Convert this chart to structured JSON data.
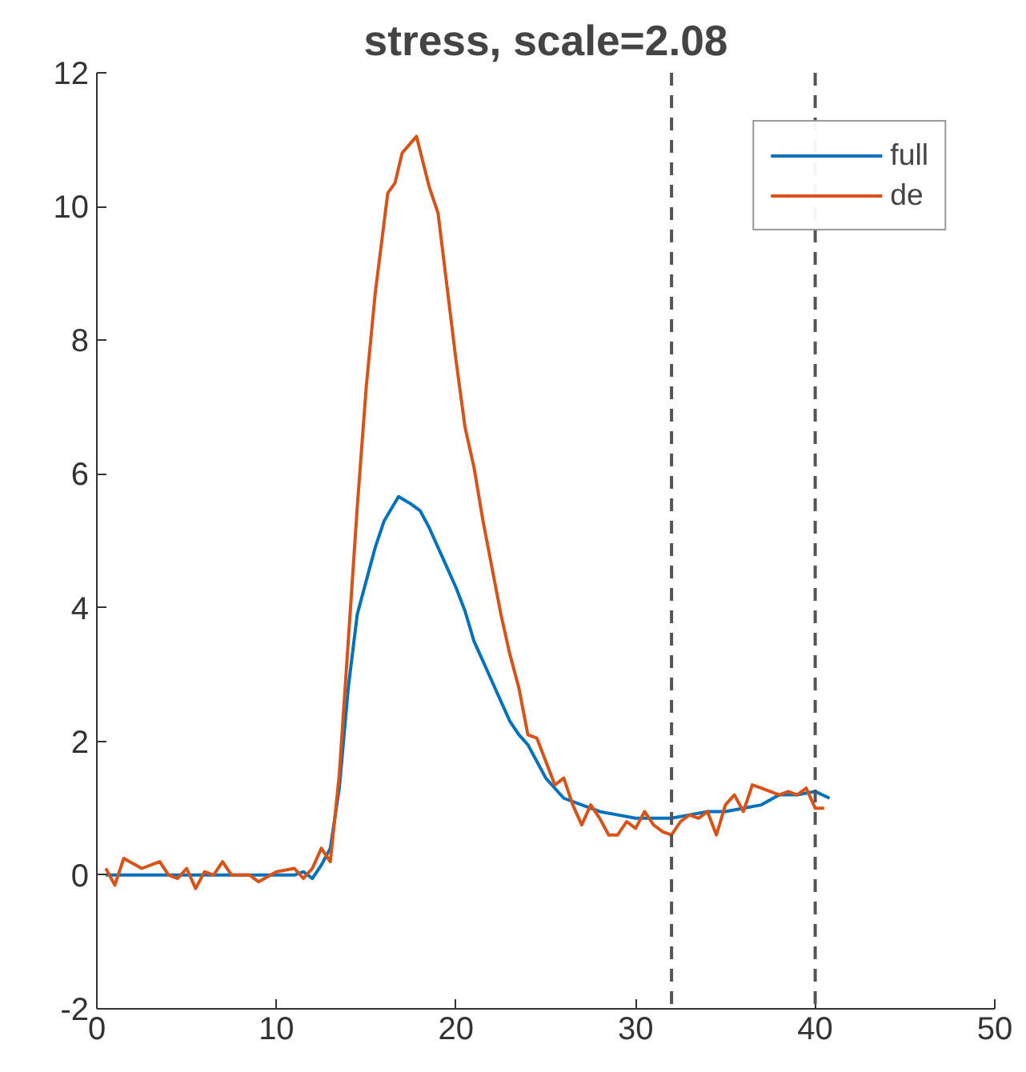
{
  "chart_data": {
    "type": "line",
    "title": "stress, scale=2.08",
    "xlim": [
      0,
      50
    ],
    "xticks": [
      0,
      10,
      20,
      30,
      40,
      50
    ],
    "ylim": [
      -2,
      12
    ],
    "yticks": [
      -2,
      0,
      2,
      4,
      6,
      8,
      10,
      12
    ],
    "grid": false,
    "legend": "top right",
    "line_style": "solid",
    "marker": "none",
    "ref_lines": [
      {
        "axis": "x",
        "value": 32,
        "label": null,
        "color": "#555555",
        "line_style": "dashed"
      },
      {
        "axis": "x",
        "value": 40,
        "label": null,
        "color": "#555555",
        "line_style": "dashed"
      }
    ],
    "series": [
      {
        "name": "full",
        "color": "#0072bd",
        "x": [
          0.5,
          11,
          11.5,
          12,
          12.5,
          13,
          13.5,
          14,
          14.5,
          15,
          15.5,
          16,
          16.8,
          17.5,
          18,
          18.5,
          19,
          19.5,
          20,
          20.5,
          21,
          21.5,
          22,
          22.5,
          23,
          23.5,
          24,
          24.5,
          25,
          25.5,
          26,
          27,
          28,
          29,
          30,
          31,
          32,
          33,
          34,
          35,
          36,
          37,
          38,
          39,
          40,
          40.8
        ],
        "values": [
          0,
          0,
          0.05,
          -0.05,
          0.15,
          0.4,
          1.3,
          2.8,
          3.9,
          4.4,
          4.9,
          5.3,
          5.66,
          5.55,
          5.45,
          5.2,
          4.9,
          4.6,
          4.3,
          3.95,
          3.5,
          3.2,
          2.9,
          2.6,
          2.3,
          2.1,
          1.95,
          1.7,
          1.45,
          1.3,
          1.15,
          1.05,
          0.95,
          0.9,
          0.85,
          0.85,
          0.85,
          0.9,
          0.95,
          0.95,
          1.0,
          1.05,
          1.2,
          1.2,
          1.25,
          1.15
        ]
      },
      {
        "name": "de",
        "color": "#d95319",
        "x": [
          0.5,
          1,
          1.5,
          2.5,
          3.5,
          4,
          4.5,
          5,
          5.5,
          6,
          6.5,
          7,
          7.5,
          8.5,
          9,
          10,
          11,
          11.5,
          12,
          12.5,
          13,
          13.5,
          14,
          14.5,
          15,
          15.5,
          16.2,
          16.6,
          17,
          17.8,
          18.5,
          19,
          19.5,
          20,
          20.5,
          21,
          21.5,
          22,
          22.5,
          23,
          23.5,
          24,
          24.5,
          25,
          25.5,
          26,
          26.5,
          27,
          27.5,
          28,
          28.5,
          29,
          29.5,
          30,
          30.5,
          31,
          31.5,
          32,
          32.5,
          33,
          33.5,
          34,
          34.5,
          35,
          35.5,
          36,
          36.5,
          37,
          37.5,
          38,
          38.5,
          39,
          39.5,
          40,
          40.5
        ],
        "values": [
          0.1,
          -0.15,
          0.25,
          0.1,
          0.2,
          0,
          -0.05,
          0.1,
          -0.2,
          0.05,
          0,
          0.2,
          0,
          0,
          -0.1,
          0.05,
          0.1,
          -0.05,
          0.1,
          0.4,
          0.2,
          1.5,
          3.5,
          5.5,
          7.3,
          8.7,
          10.2,
          10.35,
          10.8,
          11.05,
          10.3,
          9.9,
          8.8,
          7.7,
          6.7,
          6.1,
          5.3,
          4.6,
          3.9,
          3.3,
          2.8,
          2.1,
          2.05,
          1.7,
          1.35,
          1.45,
          1.05,
          0.75,
          1.05,
          0.85,
          0.6,
          0.6,
          0.8,
          0.7,
          0.95,
          0.75,
          0.65,
          0.6,
          0.8,
          0.9,
          0.85,
          0.95,
          0.6,
          1.05,
          1.2,
          0.95,
          1.35,
          1.3,
          1.25,
          1.2,
          1.25,
          1.2,
          1.3,
          1.0,
          1.0
        ]
      }
    ]
  }
}
